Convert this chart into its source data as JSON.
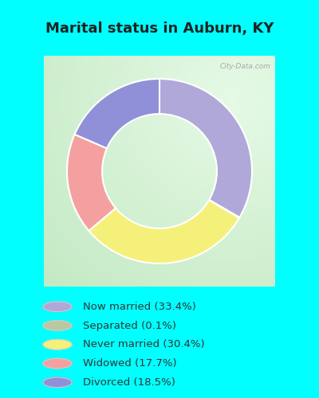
{
  "title": "Marital status in Auburn, KY",
  "title_fontsize": 13,
  "bg_color": "#00FFFF",
  "chart_bg_color": "#d8eed8",
  "slices": [
    {
      "label": "Now married (33.4%)",
      "value": 33.4,
      "color": "#b0a8d8"
    },
    {
      "label": "Separated (0.1%)",
      "value": 0.1,
      "color": "#b8c8a0"
    },
    {
      "label": "Never married (30.4%)",
      "value": 30.4,
      "color": "#f5f07a"
    },
    {
      "label": "Widowed (17.7%)",
      "value": 17.7,
      "color": "#f5a0a0"
    },
    {
      "label": "Divorced (18.5%)",
      "value": 18.5,
      "color": "#9090d8"
    }
  ],
  "donut_width": 0.38,
  "figsize": [
    4.0,
    5.0
  ],
  "dpi": 100,
  "watermark": "City-Data.com"
}
